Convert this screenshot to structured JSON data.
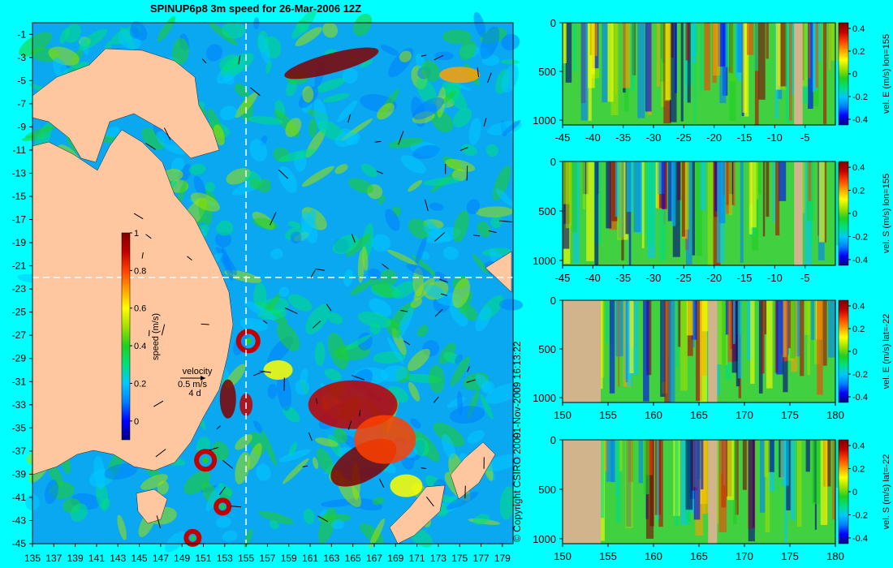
{
  "title": "SPINUP6p8 3m speed for 26-Mar-2006 12Z",
  "copyright": "© Copyright CSIRO 2009",
  "timestamp": "01-Nov-2009 16:13:22",
  "colors": {
    "background": "#00ffff",
    "land": "#ffc7a0",
    "section_land": "#d2b48c",
    "crosshair": "#ffffff"
  },
  "colormap": [
    "#00007f",
    "#0000ff",
    "#0080ff",
    "#00c8ff",
    "#00e080",
    "#20d020",
    "#a0e000",
    "#ffff00",
    "#ffa000",
    "#ff4000",
    "#c00000",
    "#800000"
  ],
  "chart_data": [
    {
      "type": "heatmap",
      "name": "map",
      "title": "SPINUP6p8 3m speed for 26-Mar-2006 12Z",
      "x_ticks": [
        135,
        137,
        139,
        141,
        143,
        145,
        147,
        149,
        151,
        153,
        155,
        157,
        159,
        161,
        163,
        165,
        167,
        169,
        171,
        173,
        175,
        177,
        179
      ],
      "y_ticks": [
        -1,
        -3,
        -5,
        -7,
        -9,
        -11,
        -13,
        -15,
        -17,
        -19,
        -21,
        -23,
        -25,
        -27,
        -29,
        -31,
        -33,
        -35,
        -37,
        -39,
        -41,
        -43,
        -45
      ],
      "xlim": [
        135,
        180
      ],
      "ylim": [
        -45,
        0
      ],
      "crosshair": {
        "lon": 155,
        "lat": -22
      },
      "colorbar": {
        "label": "speed (m/s)",
        "ticks": [
          0,
          0.2,
          0.4,
          0.6,
          0.8,
          1
        ],
        "range": [
          -0.1,
          1
        ]
      },
      "velocity_legend": {
        "title": "velocity",
        "speed": "0.5 m/s",
        "duration": "4 d"
      }
    },
    {
      "type": "heatmap",
      "name": "section-1",
      "x_ticks": [
        -45,
        -40,
        -35,
        -30,
        -25,
        -20,
        -15,
        -10,
        -5
      ],
      "y_ticks": [
        0,
        500,
        1000
      ],
      "xlim": [
        -45,
        0
      ],
      "ylim": [
        1050,
        0
      ],
      "colorbar": {
        "label": "vel. E (m/s) lon=155",
        "ticks": [
          -0.4,
          -0.2,
          0,
          0.2,
          0.4
        ]
      },
      "land_ranges": [
        [
          -6.8,
          -5.4
        ]
      ]
    },
    {
      "type": "heatmap",
      "name": "section-2",
      "x_ticks": [
        -45,
        -40,
        -35,
        -30,
        -25,
        -20,
        -15,
        -10,
        -5
      ],
      "y_ticks": [
        0,
        500,
        1000
      ],
      "xlim": [
        -45,
        0
      ],
      "ylim": [
        1050,
        0
      ],
      "colorbar": {
        "label": "vel. S (m/s) lon=155",
        "ticks": [
          -0.4,
          -0.2,
          0,
          0.2,
          0.4
        ]
      },
      "land_ranges": [
        [
          -6.8,
          -5.4
        ]
      ]
    },
    {
      "type": "heatmap",
      "name": "section-3",
      "x_ticks": [
        150,
        155,
        160,
        165,
        170,
        175,
        180
      ],
      "y_ticks": [
        0,
        500,
        1000
      ],
      "xlim": [
        150,
        180
      ],
      "ylim": [
        1050,
        0
      ],
      "colorbar": {
        "label": "vel. E (m/s) lat=-22",
        "ticks": [
          -0.4,
          -0.2,
          0,
          0.2,
          0.4
        ]
      },
      "land_ranges": [
        [
          150,
          154.2
        ],
        [
          166,
          167
        ]
      ]
    },
    {
      "type": "heatmap",
      "name": "section-4",
      "x_ticks": [
        150,
        155,
        160,
        165,
        170,
        175,
        180
      ],
      "y_ticks": [
        0,
        500,
        1000
      ],
      "xlim": [
        150,
        180
      ],
      "ylim": [
        1050,
        0
      ],
      "colorbar": {
        "label": "vel. S (m/s) lat=-22",
        "ticks": [
          -0.4,
          -0.2,
          0,
          0.2,
          0.4
        ]
      },
      "land_ranges": [
        [
          150,
          154.2
        ],
        [
          166,
          167
        ]
      ]
    }
  ]
}
